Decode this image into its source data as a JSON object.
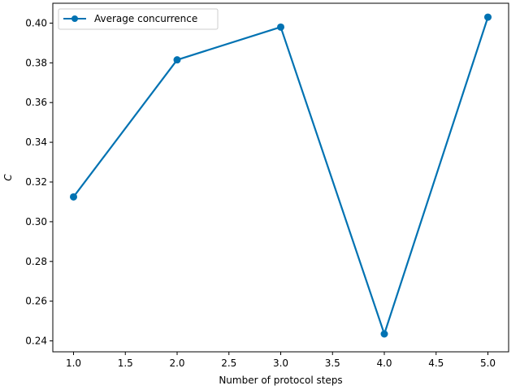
{
  "chart_data": {
    "type": "line",
    "title": "",
    "xlabel": "Number of protocol steps",
    "ylabel": "C",
    "xlim": [
      0.8,
      5.2
    ],
    "ylim": [
      0.2345,
      0.41
    ],
    "xticks": [
      1.0,
      1.5,
      2.0,
      2.5,
      3.0,
      3.5,
      4.0,
      4.5,
      5.0
    ],
    "xtick_labels": [
      "1.0",
      "1.5",
      "2.0",
      "2.5",
      "3.0",
      "3.5",
      "4.0",
      "4.5",
      "5.0"
    ],
    "yticks": [
      0.24,
      0.26,
      0.28,
      0.3,
      0.32,
      0.34,
      0.36,
      0.38,
      0.4
    ],
    "ytick_labels": [
      "0.24",
      "0.26",
      "0.28",
      "0.30",
      "0.32",
      "0.34",
      "0.36",
      "0.38",
      "0.40"
    ],
    "grid": false,
    "legend_position": "top-left",
    "series": [
      {
        "name": "Average concurrence",
        "color": "#0072b2",
        "marker": "circle",
        "x": [
          1,
          2,
          3,
          4,
          5
        ],
        "y": [
          0.3125,
          0.3815,
          0.398,
          0.2435,
          0.403
        ]
      }
    ]
  }
}
